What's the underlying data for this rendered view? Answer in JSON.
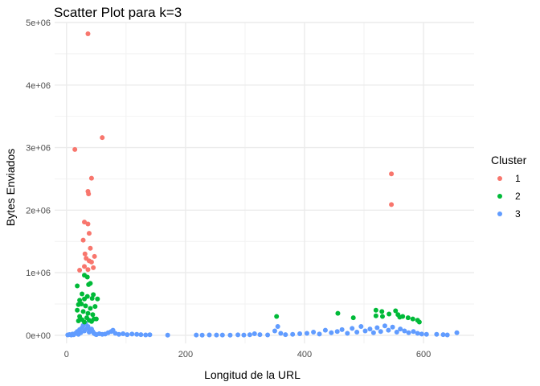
{
  "chart_data": {
    "type": "scatter",
    "title": "Scatter Plot para k=3",
    "xlabel": "Longitud de la URL",
    "ylabel": "Bytes Enviados",
    "xlim": [
      -20,
      685
    ],
    "ylim": [
      -130000,
      5000000
    ],
    "x_ticks": [
      0,
      200,
      400,
      600
    ],
    "x_tick_labels": [
      "0",
      "200",
      "400",
      "600"
    ],
    "y_ticks": [
      0,
      1000000,
      2000000,
      3000000,
      4000000,
      5000000
    ],
    "y_tick_labels": [
      "0e+00",
      "1e+06",
      "2e+06",
      "3e+06",
      "4e+06",
      "5e+06"
    ],
    "grid": true,
    "legend_position": "right",
    "legend": {
      "title": "Cluster",
      "entries": [
        {
          "label": "1",
          "color": "#F8766D"
        },
        {
          "label": "2",
          "color": "#00BA38"
        },
        {
          "label": "3",
          "color": "#619CFF"
        }
      ]
    },
    "series": [
      {
        "name": "1",
        "color": "#F8766D",
        "points": [
          [
            36,
            4820000
          ],
          [
            14,
            2970000
          ],
          [
            60,
            3160000
          ],
          [
            42,
            2510000
          ],
          [
            36,
            2300000
          ],
          [
            37,
            2260000
          ],
          [
            546,
            2580000
          ],
          [
            546,
            2090000
          ],
          [
            30,
            1810000
          ],
          [
            36,
            1780000
          ],
          [
            38,
            1630000
          ],
          [
            28,
            1520000
          ],
          [
            40,
            1390000
          ],
          [
            31,
            1300000
          ],
          [
            47,
            1260000
          ],
          [
            33,
            1230000
          ],
          [
            38,
            1190000
          ],
          [
            42,
            1170000
          ],
          [
            22,
            1040000
          ],
          [
            36,
            1050000
          ],
          [
            45,
            1080000
          ],
          [
            30,
            1100000
          ]
        ]
      },
      {
        "name": "2",
        "color": "#00BA38",
        "points": [
          [
            30,
            960000
          ],
          [
            35,
            930000
          ],
          [
            40,
            830000
          ],
          [
            37,
            810000
          ],
          [
            18,
            790000
          ],
          [
            45,
            650000
          ],
          [
            26,
            660000
          ],
          [
            35,
            620000
          ],
          [
            22,
            560000
          ],
          [
            30,
            580000
          ],
          [
            43,
            590000
          ],
          [
            52,
            580000
          ],
          [
            20,
            490000
          ],
          [
            25,
            500000
          ],
          [
            32,
            470000
          ],
          [
            48,
            460000
          ],
          [
            40,
            430000
          ],
          [
            18,
            400000
          ],
          [
            28,
            380000
          ],
          [
            36,
            350000
          ],
          [
            44,
            330000
          ],
          [
            22,
            300000
          ],
          [
            34,
            280000
          ],
          [
            46,
            260000
          ],
          [
            26,
            250000
          ],
          [
            38,
            240000
          ],
          [
            50,
            260000
          ],
          [
            20,
            230000
          ],
          [
            42,
            220000
          ],
          [
            30,
            210000
          ],
          [
            353,
            300000
          ],
          [
            456,
            350000
          ],
          [
            482,
            280000
          ],
          [
            520,
            400000
          ],
          [
            530,
            380000
          ],
          [
            520,
            310000
          ],
          [
            531,
            300000
          ],
          [
            542,
            340000
          ],
          [
            553,
            390000
          ],
          [
            557,
            330000
          ],
          [
            565,
            300000
          ],
          [
            574,
            280000
          ],
          [
            582,
            260000
          ],
          [
            590,
            240000
          ],
          [
            593,
            210000
          ],
          [
            560,
            290000
          ]
        ]
      },
      {
        "name": "3",
        "color": "#619CFF",
        "points": [
          [
            2,
            5000
          ],
          [
            5,
            12000
          ],
          [
            8,
            3000
          ],
          [
            10,
            20000
          ],
          [
            12,
            8000
          ],
          [
            15,
            30000
          ],
          [
            18,
            60000
          ],
          [
            20,
            15000
          ],
          [
            22,
            90000
          ],
          [
            24,
            40000
          ],
          [
            26,
            120000
          ],
          [
            28,
            160000
          ],
          [
            30,
            70000
          ],
          [
            32,
            190000
          ],
          [
            34,
            110000
          ],
          [
            36,
            140000
          ],
          [
            38,
            50000
          ],
          [
            40,
            80000
          ],
          [
            42,
            100000
          ],
          [
            44,
            60000
          ],
          [
            46,
            30000
          ],
          [
            48,
            20000
          ],
          [
            50,
            10000
          ],
          [
            55,
            25000
          ],
          [
            60,
            15000
          ],
          [
            65,
            20000
          ],
          [
            70,
            40000
          ],
          [
            75,
            60000
          ],
          [
            78,
            80000
          ],
          [
            82,
            30000
          ],
          [
            88,
            15000
          ],
          [
            95,
            25000
          ],
          [
            102,
            10000
          ],
          [
            110,
            20000
          ],
          [
            118,
            15000
          ],
          [
            125,
            10000
          ],
          [
            133,
            5000
          ],
          [
            140,
            8000
          ],
          [
            170,
            2000
          ],
          [
            218,
            3000
          ],
          [
            228,
            2000
          ],
          [
            240,
            5000
          ],
          [
            252,
            3000
          ],
          [
            262,
            4000
          ],
          [
            275,
            2000
          ],
          [
            288,
            6000
          ],
          [
            298,
            3000
          ],
          [
            308,
            8000
          ],
          [
            316,
            25000
          ],
          [
            325,
            10000
          ],
          [
            338,
            5000
          ],
          [
            350,
            70000
          ],
          [
            355,
            140000
          ],
          [
            360,
            30000
          ],
          [
            368,
            10000
          ],
          [
            380,
            15000
          ],
          [
            392,
            25000
          ],
          [
            404,
            30000
          ],
          [
            415,
            50000
          ],
          [
            425,
            20000
          ],
          [
            435,
            80000
          ],
          [
            445,
            40000
          ],
          [
            455,
            60000
          ],
          [
            463,
            90000
          ],
          [
            472,
            30000
          ],
          [
            480,
            110000
          ],
          [
            488,
            50000
          ],
          [
            495,
            140000
          ],
          [
            502,
            70000
          ],
          [
            510,
            100000
          ],
          [
            516,
            40000
          ],
          [
            522,
            120000
          ],
          [
            528,
            60000
          ],
          [
            535,
            150000
          ],
          [
            541,
            80000
          ],
          [
            548,
            130000
          ],
          [
            555,
            50000
          ],
          [
            561,
            100000
          ],
          [
            568,
            70000
          ],
          [
            575,
            40000
          ],
          [
            583,
            60000
          ],
          [
            590,
            30000
          ],
          [
            597,
            20000
          ],
          [
            605,
            15000
          ],
          [
            622,
            15000
          ],
          [
            633,
            10000
          ],
          [
            640,
            5000
          ],
          [
            656,
            40000
          ]
        ]
      }
    ]
  }
}
